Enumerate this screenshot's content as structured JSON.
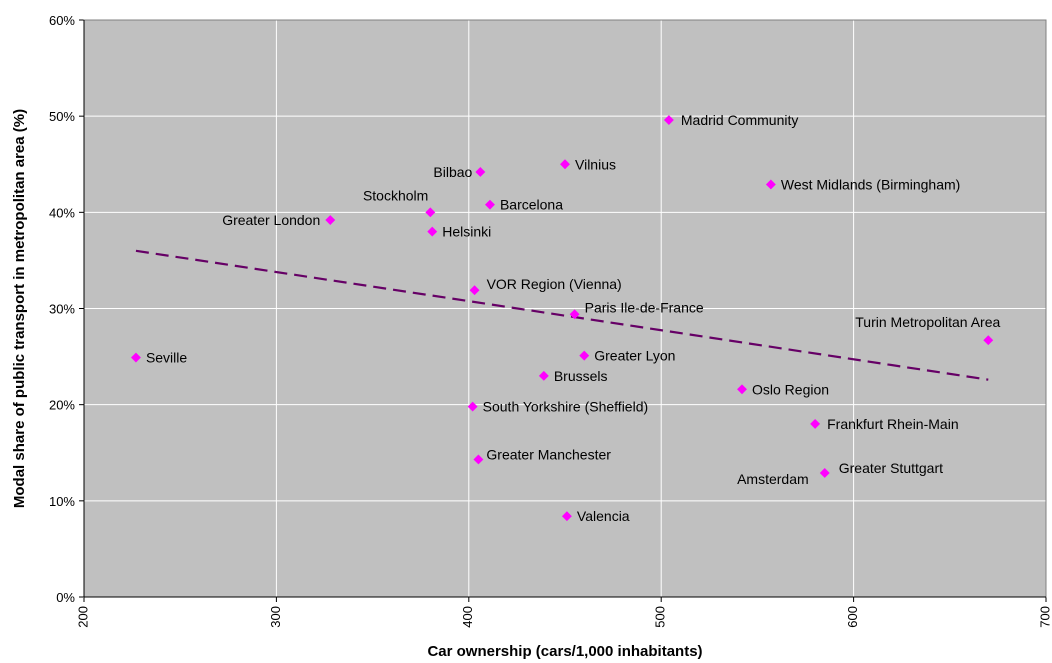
{
  "chart_data": {
    "type": "scatter",
    "xlabel": "Car ownership (cars/1,000 inhabitants)",
    "ylabel": "Modal share of public transport in metropolitan area (%)",
    "xlim": [
      200,
      700
    ],
    "ylim": [
      0,
      60
    ],
    "x_ticks": [
      "200",
      "300",
      "400",
      "500",
      "600",
      "700"
    ],
    "y_ticks": [
      "0%",
      "10%",
      "20%",
      "30%",
      "40%",
      "50%",
      "60%"
    ],
    "grid": true,
    "plot_background": "#C0C0C0",
    "marker_color": "#FF00FF",
    "trendline": {
      "style": "dashed",
      "color": "#660066",
      "x": [
        227,
        670
      ],
      "y": [
        36.0,
        22.6
      ]
    },
    "points": [
      {
        "label": "Madrid Community",
        "x": 504,
        "y": 49.6
      },
      {
        "label": "Vilnius",
        "x": 450,
        "y": 45.0
      },
      {
        "label": "Bilbao",
        "x": 406,
        "y": 44.2
      },
      {
        "label": "West Midlands (Birmingham)",
        "x": 557,
        "y": 42.9
      },
      {
        "label": "Barcelona",
        "x": 411,
        "y": 40.8
      },
      {
        "label": "Stockholm",
        "x": 380,
        "y": 40.0
      },
      {
        "label": "Greater London",
        "x": 328,
        "y": 39.2
      },
      {
        "label": "Helsinki",
        "x": 381,
        "y": 38.0
      },
      {
        "label": "VOR Region (Vienna)",
        "x": 403,
        "y": 31.9
      },
      {
        "label": "Paris Ile-de-France",
        "x": 455,
        "y": 29.4
      },
      {
        "label": "Turin Metropolitan Area",
        "x": 670,
        "y": 26.7
      },
      {
        "label": "Seville",
        "x": 227,
        "y": 24.9
      },
      {
        "label": "Greater Lyon",
        "x": 460,
        "y": 25.1
      },
      {
        "label": "Brussels",
        "x": 439,
        "y": 23.0
      },
      {
        "label": "Oslo Region",
        "x": 542,
        "y": 21.6
      },
      {
        "label": "South Yorkshire (Sheffield)",
        "x": 402,
        "y": 19.8
      },
      {
        "label": "Frankfurt Rhein-Main",
        "x": 580,
        "y": 18.0
      },
      {
        "label": "Greater Manchester",
        "x": 405,
        "y": 14.3
      },
      {
        "label": "Greater Stuttgart",
        "x": 585,
        "y": 12.9
      },
      {
        "label": "Amsterdam",
        "x": 586,
        "y": 12.7
      },
      {
        "label": "Valencia",
        "x": 451,
        "y": 8.4
      }
    ]
  }
}
